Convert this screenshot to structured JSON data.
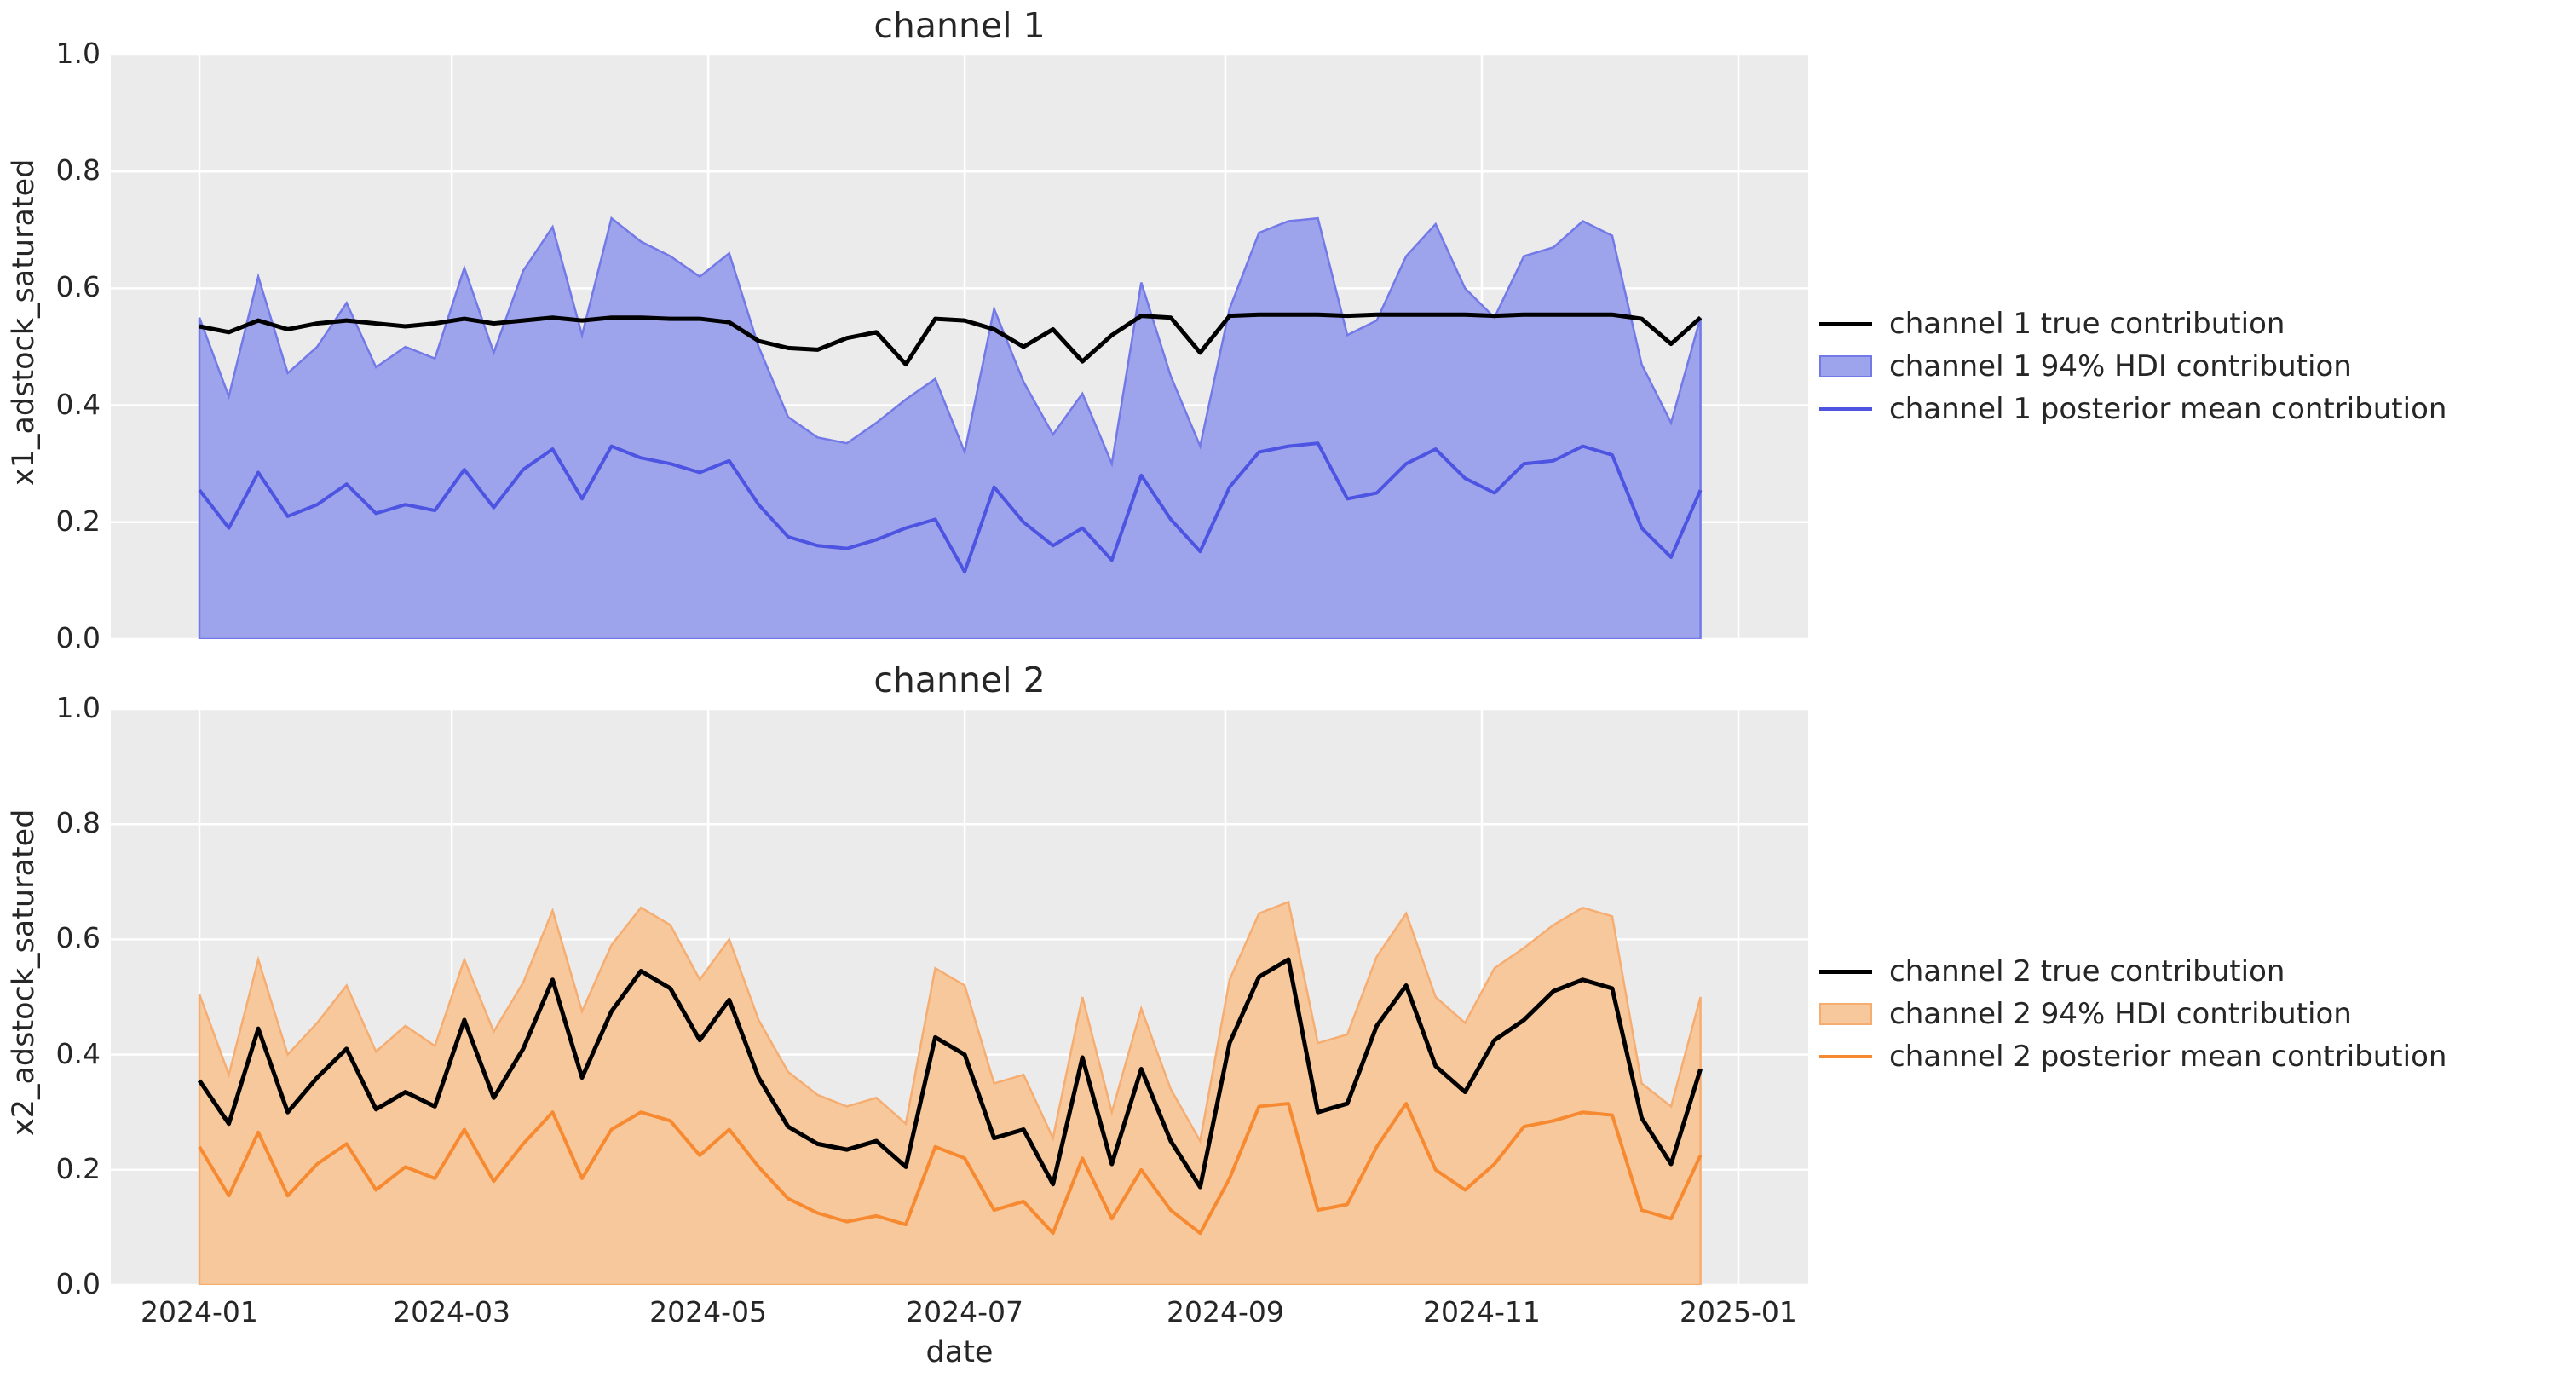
{
  "figure": {
    "background": "#ffffff",
    "axes_background": "#ebebeb",
    "grid_color": "#ffffff",
    "text_color": "#262626",
    "xlabel": "date"
  },
  "chart_data": [
    {
      "type": "line+area",
      "title": "channel 1",
      "ylabel": "x1_adstock_saturated",
      "xlabel": "date",
      "grid": true,
      "ylim": [
        0.0,
        1.0
      ],
      "y_ticks": [
        0.0,
        0.2,
        0.4,
        0.6,
        0.8,
        1.0
      ],
      "y_tick_labels": [
        "0.0",
        "0.2",
        "0.4",
        "0.6",
        "0.8",
        "1.0"
      ],
      "x_tick_labels": [
        "2024-01",
        "2024-03",
        "2024-05",
        "2024-07",
        "2024-09",
        "2024-11",
        "2025-01"
      ],
      "x_tick_days": [
        0,
        60,
        121,
        182,
        244,
        305,
        366
      ],
      "legend_position": "right-of-plot",
      "legend": [
        "channel 1 true contribution",
        "channel 1 94% HDI contribution",
        "channel 1 posterior mean contribution"
      ],
      "colors": {
        "true_line": "#000000",
        "band_fill": "#9ea4eb",
        "band_edge": "#7379e6",
        "mean_line": "#4d54e1"
      },
      "x_weekly_dates": [
        "2024-01-01",
        "2024-01-08",
        "2024-01-15",
        "2024-01-22",
        "2024-01-29",
        "2024-02-05",
        "2024-02-12",
        "2024-02-19",
        "2024-02-26",
        "2024-03-04",
        "2024-03-11",
        "2024-03-18",
        "2024-03-25",
        "2024-04-01",
        "2024-04-08",
        "2024-04-15",
        "2024-04-22",
        "2024-04-29",
        "2024-05-06",
        "2024-05-13",
        "2024-05-20",
        "2024-05-27",
        "2024-06-03",
        "2024-06-10",
        "2024-06-17",
        "2024-06-24",
        "2024-07-01",
        "2024-07-08",
        "2024-07-15",
        "2024-07-22",
        "2024-07-29",
        "2024-08-05",
        "2024-08-12",
        "2024-08-19",
        "2024-08-26",
        "2024-09-02",
        "2024-09-09",
        "2024-09-16",
        "2024-09-23",
        "2024-09-30",
        "2024-10-07",
        "2024-10-14",
        "2024-10-21",
        "2024-10-28",
        "2024-11-04",
        "2024-11-11",
        "2024-11-18",
        "2024-11-25",
        "2024-12-02",
        "2024-12-09",
        "2024-12-16",
        "2024-12-23"
      ],
      "series": [
        {
          "name": "channel 1 true contribution",
          "role": "true",
          "values": [
            0.535,
            0.525,
            0.545,
            0.53,
            0.54,
            0.545,
            0.54,
            0.535,
            0.54,
            0.548,
            0.54,
            0.545,
            0.55,
            0.545,
            0.55,
            0.55,
            0.548,
            0.548,
            0.542,
            0.51,
            0.498,
            0.495,
            0.515,
            0.525,
            0.47,
            0.548,
            0.545,
            0.53,
            0.5,
            0.53,
            0.475,
            0.52,
            0.553,
            0.55,
            0.49,
            0.553,
            0.555,
            0.555,
            0.555,
            0.553,
            0.555,
            0.555,
            0.555,
            0.555,
            0.553,
            0.555,
            0.555,
            0.555,
            0.555,
            0.548,
            0.505,
            0.55
          ]
        },
        {
          "name": "channel 1 94% HDI contribution",
          "role": "band",
          "lower": 0.0,
          "upper": [
            0.55,
            0.415,
            0.62,
            0.455,
            0.5,
            0.575,
            0.465,
            0.5,
            0.48,
            0.635,
            0.49,
            0.63,
            0.705,
            0.52,
            0.72,
            0.68,
            0.655,
            0.62,
            0.66,
            0.5,
            0.38,
            0.345,
            0.335,
            0.37,
            0.41,
            0.445,
            0.32,
            0.565,
            0.44,
            0.35,
            0.42,
            0.3,
            0.61,
            0.45,
            0.33,
            0.565,
            0.695,
            0.715,
            0.72,
            0.52,
            0.545,
            0.655,
            0.71,
            0.6,
            0.55,
            0.655,
            0.67,
            0.715,
            0.69,
            0.47,
            0.37,
            0.55
          ]
        },
        {
          "name": "channel 1 posterior mean contribution",
          "role": "mean",
          "values": [
            0.255,
            0.19,
            0.285,
            0.21,
            0.23,
            0.265,
            0.215,
            0.23,
            0.22,
            0.29,
            0.225,
            0.29,
            0.325,
            0.24,
            0.33,
            0.31,
            0.3,
            0.285,
            0.305,
            0.23,
            0.175,
            0.16,
            0.155,
            0.17,
            0.19,
            0.205,
            0.115,
            0.26,
            0.2,
            0.16,
            0.19,
            0.135,
            0.28,
            0.205,
            0.15,
            0.26,
            0.32,
            0.33,
            0.335,
            0.24,
            0.25,
            0.3,
            0.325,
            0.275,
            0.25,
            0.3,
            0.305,
            0.33,
            0.315,
            0.19,
            0.14,
            0.255
          ]
        }
      ]
    },
    {
      "type": "line+area",
      "title": "channel 2",
      "ylabel": "x2_adstock_saturated",
      "xlabel": "date",
      "grid": true,
      "ylim": [
        0.0,
        1.0
      ],
      "y_ticks": [
        0.0,
        0.2,
        0.4,
        0.6,
        0.8,
        1.0
      ],
      "y_tick_labels": [
        "0.0",
        "0.2",
        "0.4",
        "0.6",
        "0.8",
        "1.0"
      ],
      "x_tick_labels": [
        "2024-01",
        "2024-03",
        "2024-05",
        "2024-07",
        "2024-09",
        "2024-11",
        "2025-01"
      ],
      "x_tick_days": [
        0,
        60,
        121,
        182,
        244,
        305,
        366
      ],
      "legend_position": "right-of-plot",
      "legend": [
        "channel 2 true contribution",
        "channel 2 94% HDI contribution",
        "channel 2 posterior mean contribution"
      ],
      "colors": {
        "true_line": "#000000",
        "band_fill": "#f6c89c",
        "band_edge": "#f5ad72",
        "mean_line": "#f78a31"
      },
      "x_weekly_dates": [
        "2024-01-01",
        "2024-01-08",
        "2024-01-15",
        "2024-01-22",
        "2024-01-29",
        "2024-02-05",
        "2024-02-12",
        "2024-02-19",
        "2024-02-26",
        "2024-03-04",
        "2024-03-11",
        "2024-03-18",
        "2024-03-25",
        "2024-04-01",
        "2024-04-08",
        "2024-04-15",
        "2024-04-22",
        "2024-04-29",
        "2024-05-06",
        "2024-05-13",
        "2024-05-20",
        "2024-05-27",
        "2024-06-03",
        "2024-06-10",
        "2024-06-17",
        "2024-06-24",
        "2024-07-01",
        "2024-07-08",
        "2024-07-15",
        "2024-07-22",
        "2024-07-29",
        "2024-08-05",
        "2024-08-12",
        "2024-08-19",
        "2024-08-26",
        "2024-09-02",
        "2024-09-09",
        "2024-09-16",
        "2024-09-23",
        "2024-09-30",
        "2024-10-07",
        "2024-10-14",
        "2024-10-21",
        "2024-10-28",
        "2024-11-04",
        "2024-11-11",
        "2024-11-18",
        "2024-11-25",
        "2024-12-02",
        "2024-12-09",
        "2024-12-16",
        "2024-12-23"
      ],
      "series": [
        {
          "name": "channel 2 true contribution",
          "role": "true",
          "values": [
            0.355,
            0.28,
            0.445,
            0.3,
            0.36,
            0.41,
            0.305,
            0.335,
            0.31,
            0.46,
            0.325,
            0.41,
            0.53,
            0.36,
            0.475,
            0.545,
            0.515,
            0.425,
            0.495,
            0.36,
            0.275,
            0.245,
            0.235,
            0.25,
            0.205,
            0.43,
            0.4,
            0.255,
            0.27,
            0.175,
            0.395,
            0.21,
            0.375,
            0.25,
            0.17,
            0.42,
            0.535,
            0.565,
            0.3,
            0.315,
            0.45,
            0.52,
            0.38,
            0.335,
            0.425,
            0.46,
            0.51,
            0.53,
            0.515,
            0.29,
            0.21,
            0.375
          ]
        },
        {
          "name": "channel 2 94% HDI contribution",
          "role": "band",
          "lower": 0.0,
          "upper": [
            0.505,
            0.365,
            0.565,
            0.4,
            0.455,
            0.52,
            0.405,
            0.45,
            0.415,
            0.565,
            0.44,
            0.525,
            0.65,
            0.475,
            0.59,
            0.655,
            0.625,
            0.53,
            0.6,
            0.46,
            0.37,
            0.33,
            0.31,
            0.325,
            0.28,
            0.55,
            0.52,
            0.35,
            0.365,
            0.255,
            0.5,
            0.3,
            0.48,
            0.34,
            0.25,
            0.53,
            0.645,
            0.665,
            0.42,
            0.435,
            0.57,
            0.645,
            0.5,
            0.455,
            0.55,
            0.585,
            0.625,
            0.655,
            0.64,
            0.35,
            0.31,
            0.5
          ]
        },
        {
          "name": "channel 2 posterior mean contribution",
          "role": "mean",
          "values": [
            0.24,
            0.155,
            0.265,
            0.155,
            0.21,
            0.245,
            0.165,
            0.205,
            0.185,
            0.27,
            0.18,
            0.245,
            0.3,
            0.185,
            0.27,
            0.3,
            0.285,
            0.225,
            0.27,
            0.205,
            0.15,
            0.125,
            0.11,
            0.12,
            0.105,
            0.24,
            0.22,
            0.13,
            0.145,
            0.09,
            0.22,
            0.115,
            0.2,
            0.13,
            0.09,
            0.185,
            0.31,
            0.315,
            0.13,
            0.14,
            0.24,
            0.315,
            0.2,
            0.165,
            0.21,
            0.275,
            0.285,
            0.3,
            0.295,
            0.13,
            0.115,
            0.225
          ]
        }
      ]
    }
  ]
}
